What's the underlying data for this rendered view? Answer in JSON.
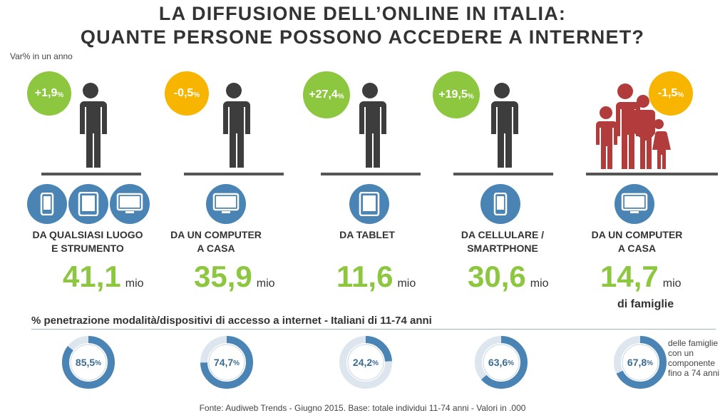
{
  "header": {
    "title_line1": "LA DIFFUSIONE DELL’ONLINE IN ITALIA:",
    "title_line2": "QUANTE PERSONE POSSONO ACCEDERE A INTERNET?",
    "var_label": "Var% in un anno"
  },
  "colors": {
    "green": "#8dc63f",
    "yellow": "#f7b500",
    "blue": "#4a84b5",
    "person": "#3d3d3d",
    "family": "#b23b3b"
  },
  "columns": [
    {
      "change": "+1,9",
      "change_unit": "%",
      "bubble_color": "green",
      "devices": [
        "smartphone-icon",
        "tablet-icon",
        "monitor-icon"
      ],
      "label_line1": "DA QUALSIASI LUOGO",
      "label_line2": "E STRUMENTO",
      "value": "41,1",
      "unit": "mio",
      "penetration": "85,5",
      "penetration_unit": "%",
      "penetration_fraction": 0.855
    },
    {
      "change": "-0,5",
      "change_unit": "%",
      "bubble_color": "yellow",
      "devices": [
        "monitor-icon"
      ],
      "label_line1": "DA UN COMPUTER",
      "label_line2": "A CASA",
      "value": "35,9",
      "unit": "mio",
      "penetration": "74,7",
      "penetration_unit": "%",
      "penetration_fraction": 0.747
    },
    {
      "change": "+27,4",
      "change_unit": "%",
      "bubble_color": "green",
      "devices": [
        "tablet-icon"
      ],
      "label_line1": "DA TABLET",
      "label_line2": "",
      "value": "11,6",
      "unit": "mio",
      "penetration": "24,2",
      "penetration_unit": "%",
      "penetration_fraction": 0.242
    },
    {
      "change": "+19,5",
      "change_unit": "%",
      "bubble_color": "green",
      "devices": [
        "smartphone-icon"
      ],
      "label_line1": "DA CELLULARE /",
      "label_line2": "SMARTPHONE",
      "value": "30,6",
      "unit": "mio",
      "penetration": "63,6",
      "penetration_unit": "%",
      "penetration_fraction": 0.636
    },
    {
      "change": "-1,5",
      "change_unit": "%",
      "bubble_color": "yellow",
      "devices": [
        "monitor-icon"
      ],
      "label_line1": "DA UN COMPUTER",
      "label_line2": "A CASA",
      "value": "14,7",
      "unit": "mio",
      "sub": "di famiglie",
      "penetration": "67,8",
      "penetration_unit": "%",
      "penetration_fraction": 0.678
    }
  ],
  "section_title": "% penetrazione modalità/dispositivi  di accesso a internet - Italiani  di 11-74 anni",
  "family_note": "delle famiglie con un componente fino a 74 anni",
  "source": "Fonte: Audiweb Trends - Giugno 2015. Base: totale individui 11-74 anni - Valori in .000"
}
